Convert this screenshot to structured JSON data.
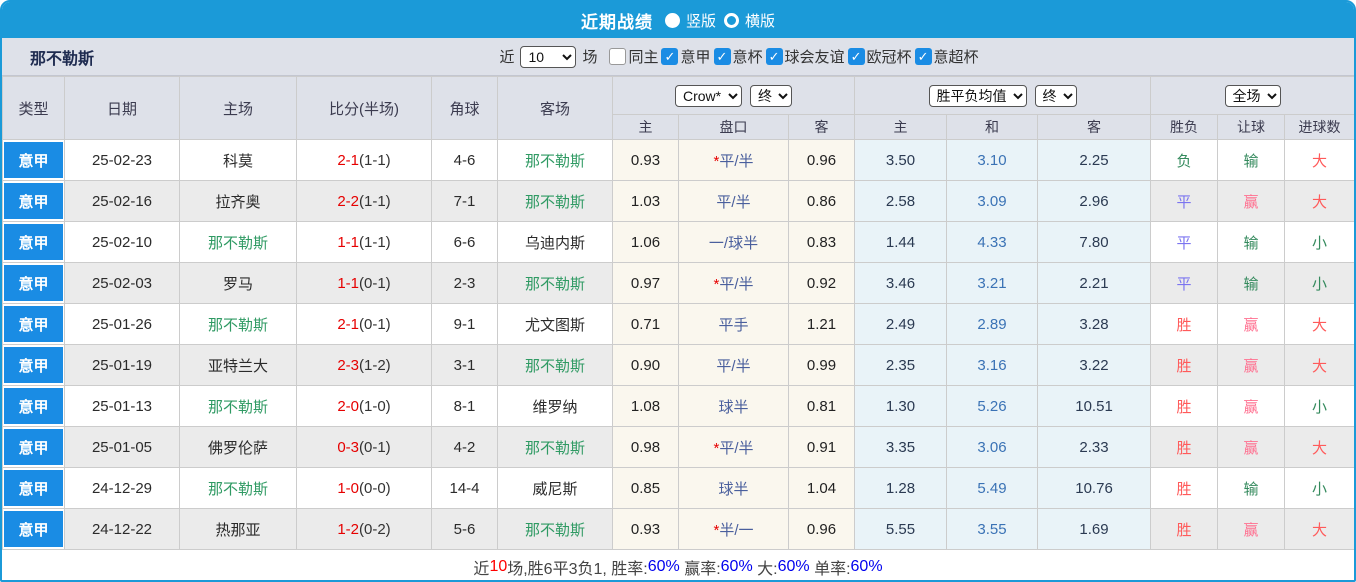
{
  "title_bar": {
    "title": "近期战绩",
    "layout_options": [
      {
        "label": "竖版",
        "selected": true
      },
      {
        "label": "横版",
        "selected": false
      }
    ]
  },
  "filter_bar": {
    "team_name": "那不勒斯",
    "recent_prefix": "近",
    "recent_count": "10",
    "recent_suffix": "场",
    "checkboxes": [
      {
        "label": "同主",
        "checked": false
      },
      {
        "label": "意甲",
        "checked": true
      },
      {
        "label": "意杯",
        "checked": true
      },
      {
        "label": "球会友谊",
        "checked": true
      },
      {
        "label": "欧冠杯",
        "checked": true
      },
      {
        "label": "意超杯",
        "checked": true
      }
    ]
  },
  "table": {
    "subject_team": "那不勒斯",
    "main_headers": [
      "类型",
      "日期",
      "主场",
      "比分(半场)",
      "角球",
      "客场"
    ],
    "sub_headers": [
      "主",
      "盘口",
      "客",
      "主",
      "和",
      "客",
      "胜负",
      "让球",
      "进球数"
    ],
    "odds_group": {
      "company": "Crow*",
      "stage": "终"
    },
    "avg_group": {
      "company": "胜平负均值",
      "stage": "终"
    },
    "scope_group": {
      "scope": "全场"
    },
    "rows": [
      {
        "league": "意甲",
        "date": "25-02-23",
        "home": "科莫",
        "score": "2-1",
        "half": "(1-1)",
        "corners": "4-6",
        "away": "那不勒斯",
        "odds_home": "0.93",
        "handicap_star": true,
        "handicap": "平/半",
        "odds_away": "0.96",
        "avg_home": "3.50",
        "avg_draw": "3.10",
        "avg_away": "2.25",
        "result": "负",
        "handicap_result": "输",
        "goals": "大"
      },
      {
        "league": "意甲",
        "date": "25-02-16",
        "home": "拉齐奥",
        "score": "2-2",
        "half": "(1-1)",
        "corners": "7-1",
        "away": "那不勒斯",
        "odds_home": "1.03",
        "handicap_star": false,
        "handicap": "平/半",
        "odds_away": "0.86",
        "avg_home": "2.58",
        "avg_draw": "3.09",
        "avg_away": "2.96",
        "result": "平",
        "handicap_result": "赢",
        "goals": "大"
      },
      {
        "league": "意甲",
        "date": "25-02-10",
        "home": "那不勒斯",
        "score": "1-1",
        "half": "(1-1)",
        "corners": "6-6",
        "away": "乌迪内斯",
        "odds_home": "1.06",
        "handicap_star": false,
        "handicap": "一/球半",
        "odds_away": "0.83",
        "avg_home": "1.44",
        "avg_draw": "4.33",
        "avg_away": "7.80",
        "result": "平",
        "handicap_result": "输",
        "goals": "小"
      },
      {
        "league": "意甲",
        "date": "25-02-03",
        "home": "罗马",
        "score": "1-1",
        "half": "(0-1)",
        "corners": "2-3",
        "away": "那不勒斯",
        "odds_home": "0.97",
        "handicap_star": true,
        "handicap": "平/半",
        "odds_away": "0.92",
        "avg_home": "3.46",
        "avg_draw": "3.21",
        "avg_away": "2.21",
        "result": "平",
        "handicap_result": "输",
        "goals": "小"
      },
      {
        "league": "意甲",
        "date": "25-01-26",
        "home": "那不勒斯",
        "score": "2-1",
        "half": "(0-1)",
        "corners": "9-1",
        "away": "尤文图斯",
        "odds_home": "0.71",
        "handicap_star": false,
        "handicap": "平手",
        "odds_away": "1.21",
        "avg_home": "2.49",
        "avg_draw": "2.89",
        "avg_away": "3.28",
        "result": "胜",
        "handicap_result": "赢",
        "goals": "大"
      },
      {
        "league": "意甲",
        "date": "25-01-19",
        "home": "亚特兰大",
        "score": "2-3",
        "half": "(1-2)",
        "corners": "3-1",
        "away": "那不勒斯",
        "odds_home": "0.90",
        "handicap_star": false,
        "handicap": "平/半",
        "odds_away": "0.99",
        "avg_home": "2.35",
        "avg_draw": "3.16",
        "avg_away": "3.22",
        "result": "胜",
        "handicap_result": "赢",
        "goals": "大"
      },
      {
        "league": "意甲",
        "date": "25-01-13",
        "home": "那不勒斯",
        "score": "2-0",
        "half": "(1-0)",
        "corners": "8-1",
        "away": "维罗纳",
        "odds_home": "1.08",
        "handicap_star": false,
        "handicap": "球半",
        "odds_away": "0.81",
        "avg_home": "1.30",
        "avg_draw": "5.26",
        "avg_away": "10.51",
        "result": "胜",
        "handicap_result": "赢",
        "goals": "小"
      },
      {
        "league": "意甲",
        "date": "25-01-05",
        "home": "佛罗伦萨",
        "score": "0-3",
        "half": "(0-1)",
        "corners": "4-2",
        "away": "那不勒斯",
        "odds_home": "0.98",
        "handicap_star": true,
        "handicap": "平/半",
        "odds_away": "0.91",
        "avg_home": "3.35",
        "avg_draw": "3.06",
        "avg_away": "2.33",
        "result": "胜",
        "handicap_result": "赢",
        "goals": "大"
      },
      {
        "league": "意甲",
        "date": "24-12-29",
        "home": "那不勒斯",
        "score": "1-0",
        "half": "(0-0)",
        "corners": "14-4",
        "away": "威尼斯",
        "odds_home": "0.85",
        "handicap_star": false,
        "handicap": "球半",
        "odds_away": "1.04",
        "avg_home": "1.28",
        "avg_draw": "5.49",
        "avg_away": "10.76",
        "result": "胜",
        "handicap_result": "输",
        "goals": "小"
      },
      {
        "league": "意甲",
        "date": "24-12-22",
        "home": "热那亚",
        "score": "1-2",
        "half": "(0-2)",
        "corners": "5-6",
        "away": "那不勒斯",
        "odds_home": "0.93",
        "handicap_star": true,
        "handicap": "半/一",
        "odds_away": "0.96",
        "avg_home": "5.55",
        "avg_draw": "3.55",
        "avg_away": "1.69",
        "result": "胜",
        "handicap_result": "赢",
        "goals": "大"
      }
    ]
  },
  "summary": {
    "segments": [
      {
        "text": "近",
        "color": "#444444"
      },
      {
        "text": "10",
        "color": "#ff0000"
      },
      {
        "text": "场,胜6平3负1, 胜率:",
        "color": "#444444"
      },
      {
        "text": "60%",
        "color": "#0000ee"
      },
      {
        "text": " 赢率:",
        "color": "#444444"
      },
      {
        "text": "60%",
        "color": "#0000ee"
      },
      {
        "text": " 大:",
        "color": "#444444"
      },
      {
        "text": "60%",
        "color": "#0000ee"
      },
      {
        "text": " 单率:",
        "color": "#444444"
      },
      {
        "text": "60%",
        "color": "#0000ee"
      }
    ]
  },
  "colors": {
    "header_blue": "#1b9ad8",
    "accent_blue": "#1a8ce4",
    "win_red": "#ff5a5a",
    "draw_blue": "#7b74f0",
    "lose_green": "#348a5d",
    "score_red": "#e60000",
    "team_green": "#2f9a63"
  }
}
